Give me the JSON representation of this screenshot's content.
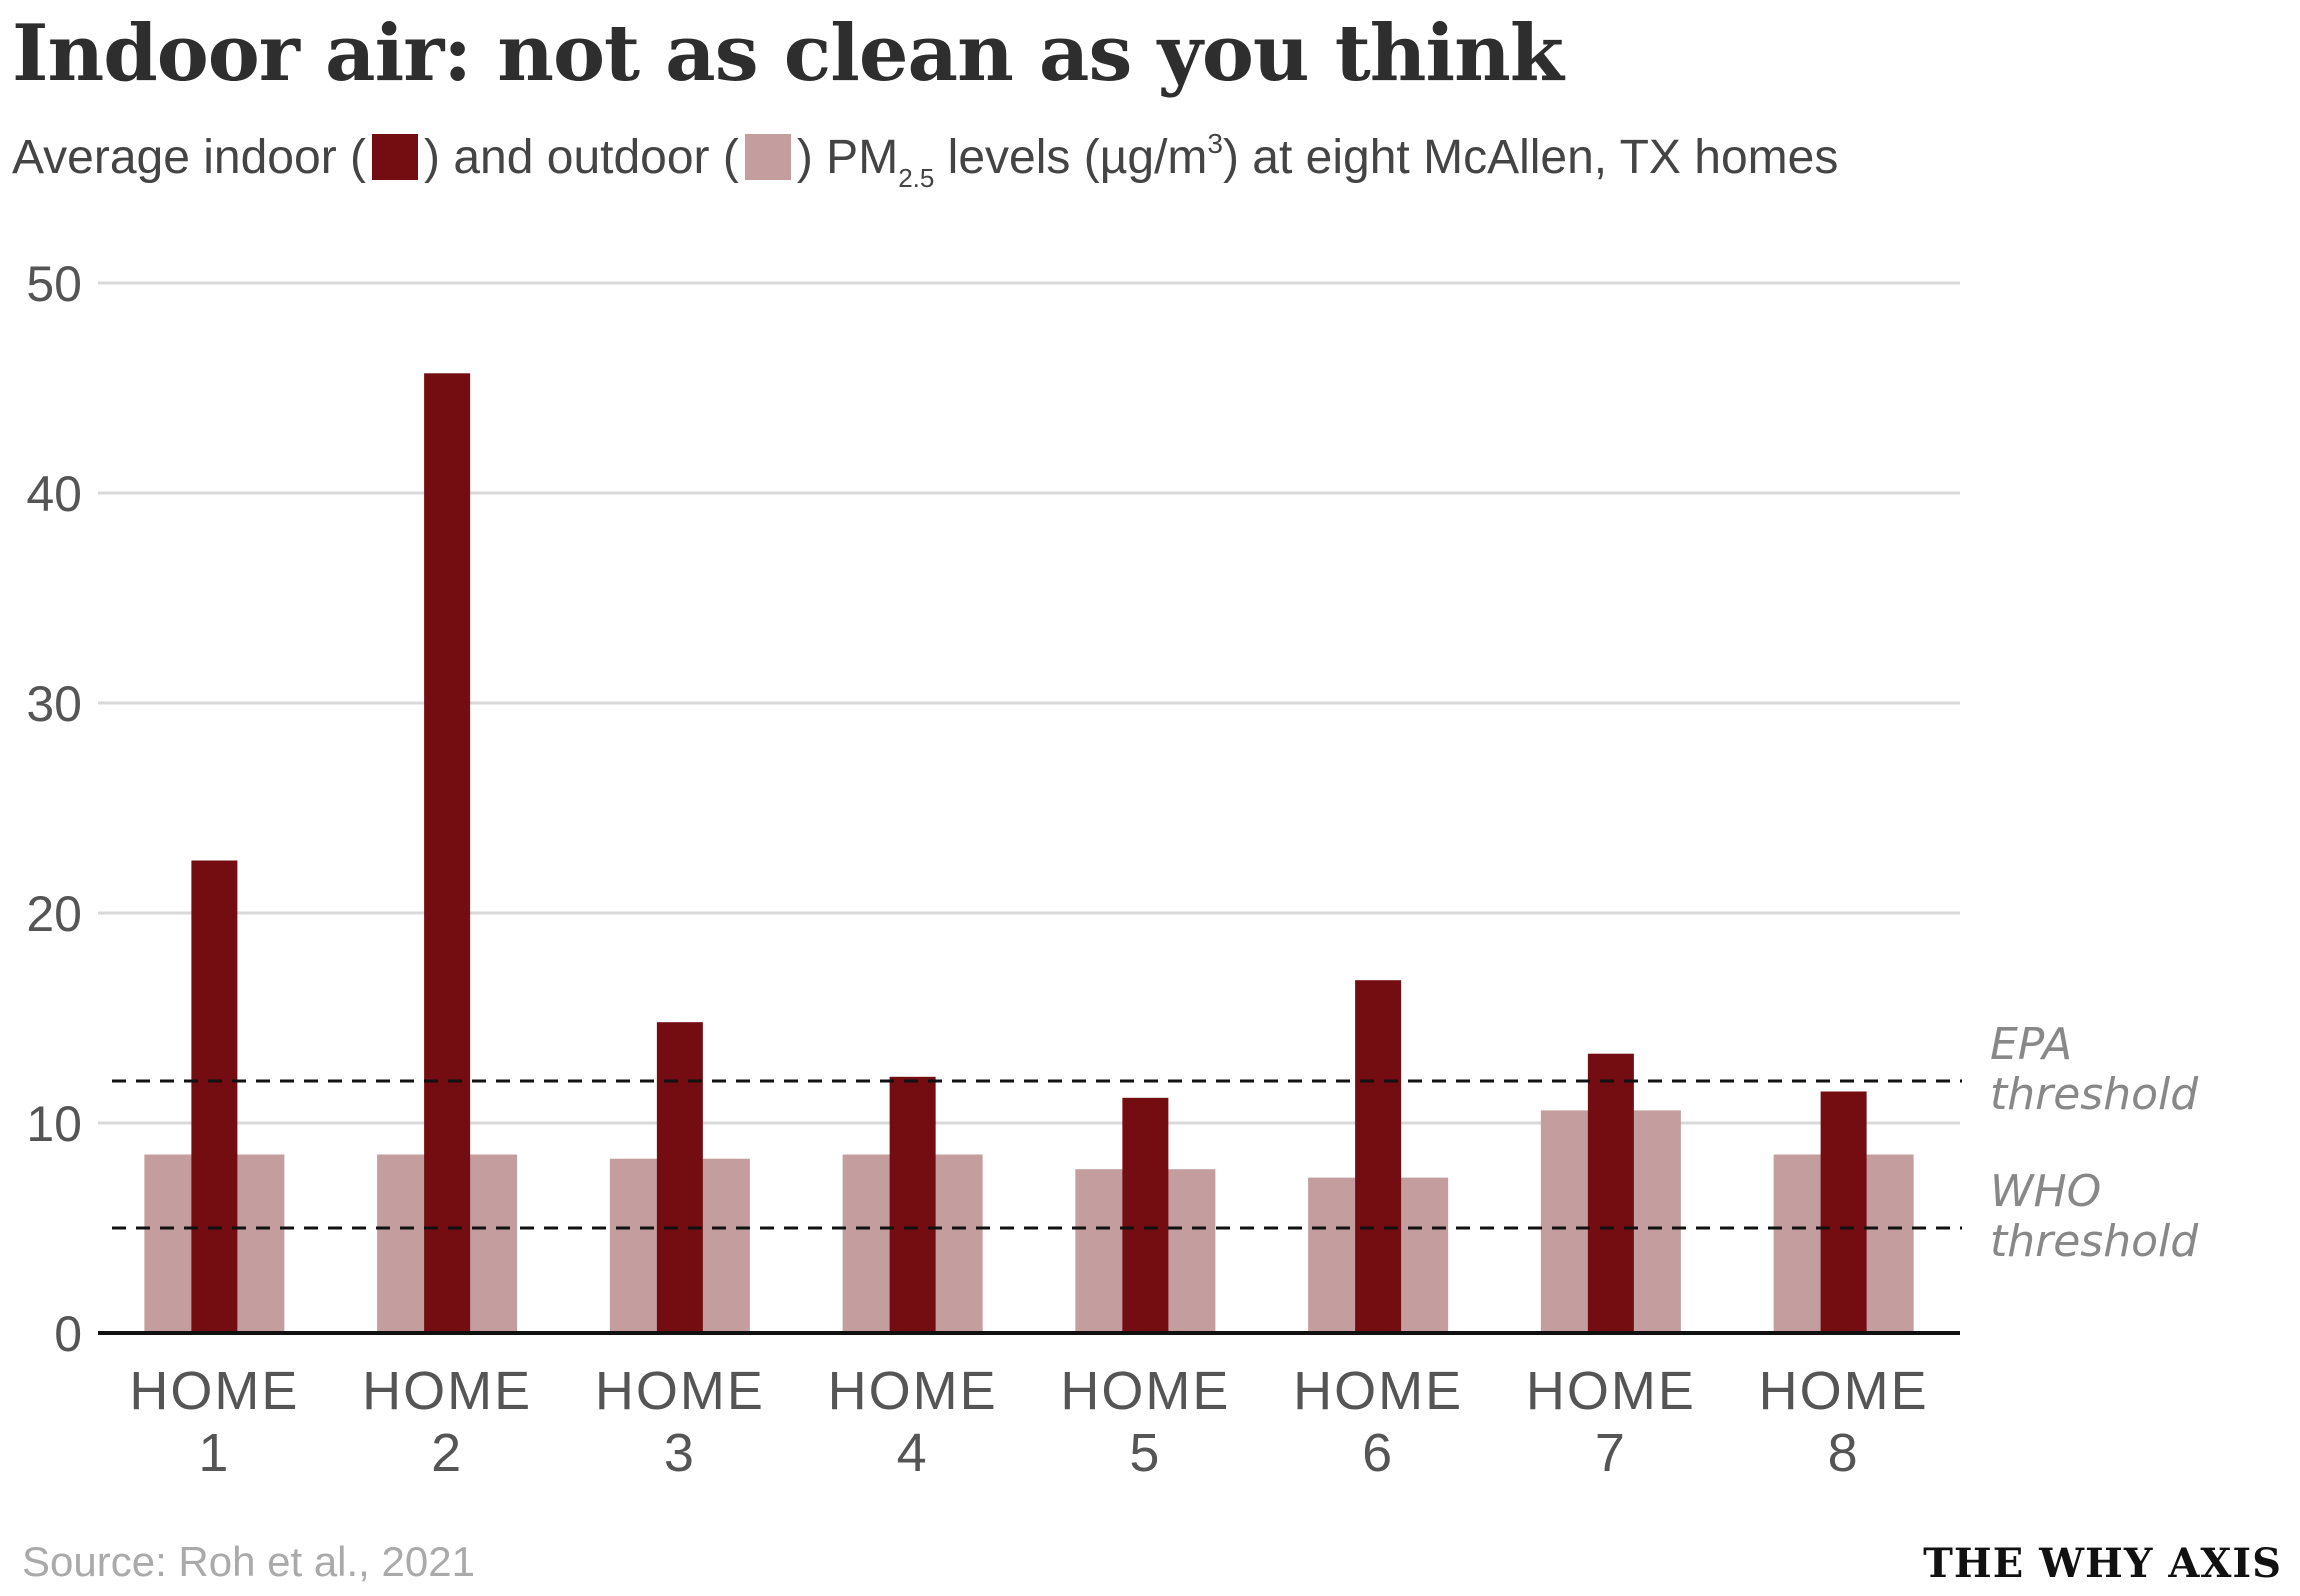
{
  "header": {
    "title": "Indoor air: not as clean as you think",
    "subtitle_part1": "Average indoor (",
    "subtitle_part2": ") and outdoor (",
    "subtitle_part3": ") PM",
    "subtitle_sub": "2.5",
    "subtitle_part4": " levels (µg/m",
    "subtitle_sup": "3",
    "subtitle_part5": ") at eight McAllen, TX homes"
  },
  "footer": {
    "source": "Source: Roh et al., 2021",
    "brand": "THE WHY AXIS"
  },
  "colors": {
    "indoor": "#730d11",
    "outdoor": "#c49d9e",
    "grid": "#d9d9d9",
    "axis": "#111111"
  },
  "chart_data": {
    "type": "bar",
    "categories": [
      "HOME 1",
      "HOME 2",
      "HOME 3",
      "HOME 4",
      "HOME 5",
      "HOME 6",
      "HOME 7",
      "HOME 8"
    ],
    "series": [
      {
        "key": "outdoor",
        "values": [
          8.5,
          8.5,
          8.3,
          8.5,
          7.8,
          7.4,
          10.6,
          8.5
        ]
      },
      {
        "key": "indoor",
        "values": [
          22.5,
          45.7,
          14.8,
          12.2,
          11.2,
          16.8,
          13.3,
          11.5
        ]
      }
    ],
    "ylim": [
      0,
      50
    ],
    "yticks": [
      0,
      10,
      20,
      30,
      40,
      50
    ],
    "grid": true,
    "reference_lines": [
      {
        "label_line1": "EPA",
        "label_line2": "threshold",
        "value": 12
      },
      {
        "label_line1": "WHO",
        "label_line2": "threshold",
        "value": 5
      }
    ]
  }
}
